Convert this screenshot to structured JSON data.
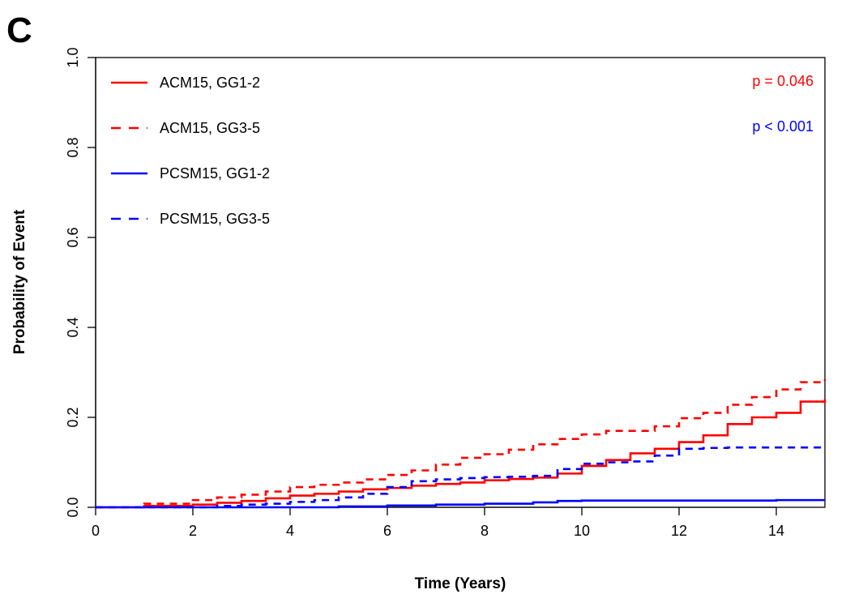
{
  "panel_label": "C",
  "chart_data": {
    "type": "line",
    "title": "",
    "xlabel": "Time (Years)",
    "ylabel": "Probability of Event",
    "xlim": [
      0,
      15
    ],
    "ylim": [
      0,
      1
    ],
    "x_ticks": [
      0,
      2,
      4,
      6,
      8,
      10,
      12,
      14
    ],
    "y_ticks": [
      0.0,
      0.2,
      0.4,
      0.6,
      0.8,
      1.0
    ],
    "y_tick_labels": [
      "0.0",
      "0.2",
      "0.4",
      "0.6",
      "0.8",
      "1.0"
    ],
    "grid": false,
    "legend_position": "top-left",
    "annotations": [
      {
        "text": "p = 0.046",
        "color": "#ff0000",
        "position": "top-right"
      },
      {
        "text": "p < 0.001",
        "color": "#0000ff",
        "position": "top-right"
      }
    ],
    "series": [
      {
        "name": "ACM15, GG1-2",
        "color": "#ff0000",
        "dash": "solid",
        "x": [
          0,
          1,
          2,
          2.5,
          3,
          3.5,
          4,
          4.5,
          5,
          5.5,
          6,
          6.5,
          7,
          7.5,
          8,
          8.5,
          9,
          9.5,
          10,
          10.5,
          11,
          11.5,
          12,
          12.5,
          13,
          13.5,
          14,
          14.5,
          15
        ],
        "y": [
          0,
          0.003,
          0.006,
          0.01,
          0.014,
          0.02,
          0.026,
          0.03,
          0.035,
          0.04,
          0.043,
          0.048,
          0.052,
          0.055,
          0.06,
          0.063,
          0.066,
          0.075,
          0.092,
          0.105,
          0.12,
          0.13,
          0.145,
          0.16,
          0.185,
          0.2,
          0.21,
          0.235,
          0.24
        ]
      },
      {
        "name": "ACM15, GG3-5",
        "color": "#ff0000",
        "dash": "dashed",
        "x": [
          0,
          1,
          2,
          2.5,
          3,
          3.5,
          4,
          4.5,
          5,
          5.5,
          6,
          6.5,
          7,
          7.5,
          8,
          8.5,
          9,
          9.5,
          10,
          10.5,
          11,
          11.5,
          12,
          12.5,
          13,
          13.5,
          14,
          14.5,
          15
        ],
        "y": [
          0,
          0.008,
          0.016,
          0.022,
          0.028,
          0.035,
          0.045,
          0.05,
          0.055,
          0.062,
          0.072,
          0.082,
          0.095,
          0.11,
          0.118,
          0.128,
          0.14,
          0.152,
          0.162,
          0.17,
          0.17,
          0.18,
          0.198,
          0.21,
          0.228,
          0.245,
          0.262,
          0.278,
          0.285
        ]
      },
      {
        "name": "PCSM15, GG1-2",
        "color": "#0000ff",
        "dash": "solid",
        "x": [
          0,
          2,
          4,
          5,
          6,
          7,
          8,
          9,
          9.5,
          10,
          11,
          12,
          13,
          14,
          15
        ],
        "y": [
          0,
          0,
          0,
          0.002,
          0.004,
          0.006,
          0.008,
          0.011,
          0.014,
          0.015,
          0.015,
          0.015,
          0.015,
          0.016,
          0.016
        ]
      },
      {
        "name": "PCSM15, GG3-5",
        "color": "#0000ff",
        "dash": "dashed",
        "x": [
          0,
          2,
          2.5,
          3,
          3.5,
          4,
          4.5,
          5,
          5.5,
          6,
          6.5,
          7,
          7.5,
          8,
          8.5,
          9,
          9.5,
          10,
          10.5,
          11,
          11.5,
          12,
          12.5,
          13,
          14,
          15
        ],
        "y": [
          0,
          0,
          0.003,
          0.006,
          0.008,
          0.012,
          0.016,
          0.022,
          0.03,
          0.045,
          0.058,
          0.062,
          0.065,
          0.067,
          0.068,
          0.07,
          0.085,
          0.097,
          0.1,
          0.102,
          0.115,
          0.13,
          0.132,
          0.133,
          0.133,
          0.133
        ]
      }
    ]
  }
}
